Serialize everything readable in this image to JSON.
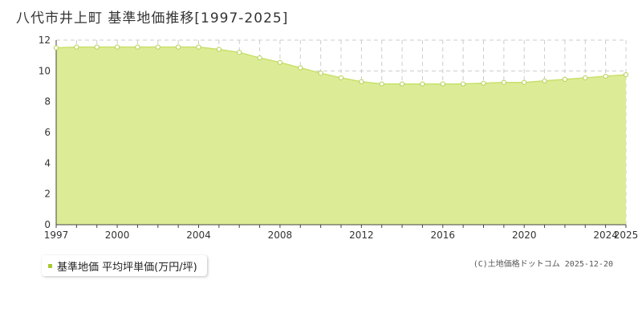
{
  "page": {
    "title": "八代市井上町 基準地価推移[1997-2025]",
    "credit": "(C)土地価格ドットコム 2025-12-20"
  },
  "legend": {
    "label": "基準地価 平均坪単価(万円/坪)"
  },
  "colors": {
    "fill": "#dcec96",
    "line": "#c8e06a",
    "marker_fill": "#ffffff",
    "marker_stroke": "#b5d25a",
    "legend_swatch": "#a8c832",
    "grid": "#cccccc",
    "axis": "#444444"
  },
  "chart_data": {
    "type": "area",
    "title": "八代市井上町 基準地価推移[1997-2025]",
    "xlabel": "",
    "ylabel": "",
    "xlim": [
      1997,
      2025
    ],
    "ylim": [
      0,
      12
    ],
    "x_ticks": [
      1997,
      2000,
      2004,
      2008,
      2012,
      2016,
      2020,
      2024,
      2025
    ],
    "y_ticks": [
      0,
      2,
      4,
      6,
      8,
      10,
      12
    ],
    "grid": true,
    "legend_position": "bottom-left",
    "series": [
      {
        "name": "基準地価 平均坪単価(万円/坪)",
        "x": [
          1997,
          1998,
          1999,
          2000,
          2001,
          2002,
          2003,
          2004,
          2005,
          2006,
          2007,
          2008,
          2009,
          2010,
          2011,
          2012,
          2013,
          2014,
          2015,
          2016,
          2017,
          2018,
          2019,
          2020,
          2021,
          2022,
          2023,
          2024,
          2025
        ],
        "values": [
          11.5,
          11.55,
          11.55,
          11.55,
          11.55,
          11.55,
          11.55,
          11.55,
          11.4,
          11.2,
          10.85,
          10.55,
          10.2,
          9.85,
          9.55,
          9.3,
          9.15,
          9.15,
          9.15,
          9.15,
          9.15,
          9.2,
          9.25,
          9.25,
          9.35,
          9.45,
          9.55,
          9.65,
          9.75
        ]
      }
    ]
  }
}
